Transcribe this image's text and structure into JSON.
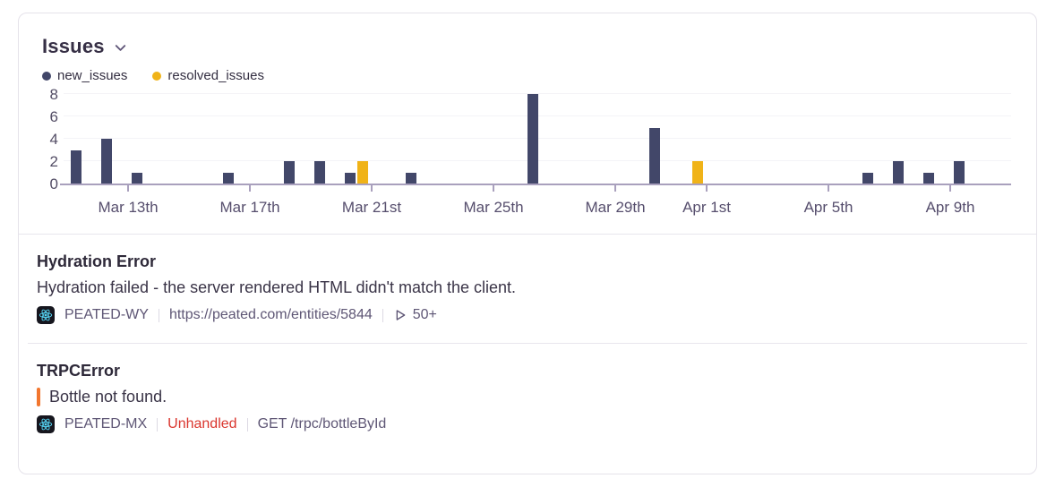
{
  "widget": {
    "title": "Issues"
  },
  "chart_data": {
    "type": "bar",
    "title": "Issues",
    "x": [
      "Mar 11",
      "Mar 12",
      "Mar 13",
      "Mar 14",
      "Mar 15",
      "Mar 16",
      "Mar 17",
      "Mar 18",
      "Mar 19",
      "Mar 20",
      "Mar 21",
      "Mar 22",
      "Mar 23",
      "Mar 24",
      "Mar 25",
      "Mar 26",
      "Mar 27",
      "Mar 28",
      "Mar 29",
      "Mar 30",
      "Mar 31",
      "Apr 1",
      "Apr 2",
      "Apr 3",
      "Apr 4",
      "Apr 5",
      "Apr 6",
      "Apr 7",
      "Apr 8",
      "Apr 9",
      "Apr 10"
    ],
    "series": [
      {
        "name": "new_issues",
        "color": "#424769",
        "values": [
          3,
          4,
          1,
          0,
          0,
          1,
          0,
          2,
          2,
          1,
          0,
          1,
          0,
          0,
          0,
          8,
          0,
          0,
          0,
          5,
          0,
          0,
          0,
          0,
          0,
          0,
          1,
          2,
          1,
          2,
          0
        ]
      },
      {
        "name": "resolved_issues",
        "color": "#f0b318",
        "values": [
          0,
          0,
          0,
          0,
          0,
          0,
          0,
          0,
          0,
          2,
          0,
          0,
          0,
          0,
          0,
          0,
          0,
          0,
          0,
          0,
          2,
          0,
          0,
          0,
          0,
          0,
          0,
          0,
          0,
          0,
          0
        ]
      }
    ],
    "x_tick_labels": [
      "Mar 13th",
      "Mar 17th",
      "Mar 21st",
      "Mar 25th",
      "Mar 29th",
      "Apr 1st",
      "Apr 5th",
      "Apr 9th"
    ],
    "x_tick_indices": [
      2,
      6,
      10,
      14,
      18,
      21,
      25,
      29
    ],
    "y_ticks": [
      0,
      2,
      4,
      6,
      8
    ],
    "ylim": [
      0,
      8
    ],
    "grid": true,
    "legend_position": "top-left"
  },
  "issues": [
    {
      "title": "Hydration Error",
      "description": "Hydration failed - the server rendered HTML didn't match the client.",
      "project": "PEATED-WY",
      "culprit": "https://peated.com/entities/5844",
      "events": "50+",
      "platform_icon": "react"
    },
    {
      "title": "TRPCError",
      "description": "Bottle not found.",
      "project": "PEATED-MX",
      "tag": "Unhandled",
      "culprit": "GET /trpc/bottleById",
      "platform_icon": "react",
      "level_color": "#f2762e"
    }
  ]
}
